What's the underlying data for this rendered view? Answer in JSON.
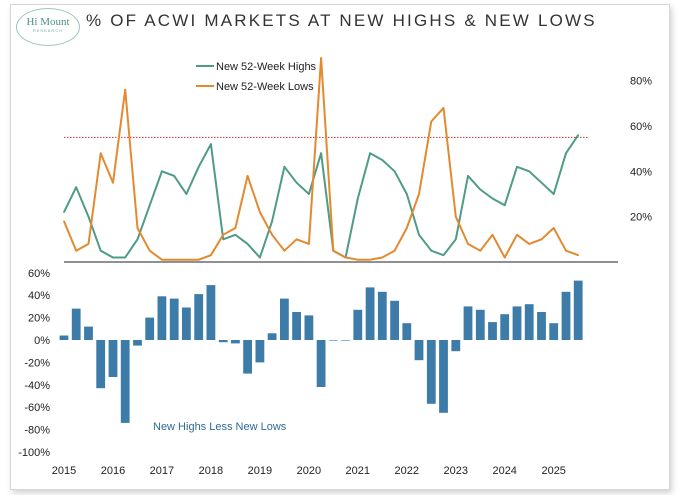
{
  "title": "% OF ACWI MARKETS AT NEW HIGHS & NEW LOWS",
  "logo": {
    "main": "Hi Mount",
    "sub": "RESEARCH"
  },
  "colors": {
    "highs": "#4e9b87",
    "lows": "#e3892f",
    "net": "#3d7ca8",
    "threshold": "#c0392b"
  },
  "chart_data": [
    {
      "type": "line",
      "title": "% OF ACWI MARKETS AT NEW HIGHS & NEW LOWS",
      "x": [
        2015.0,
        2015.25,
        2015.5,
        2015.75,
        2016.0,
        2016.25,
        2016.5,
        2016.75,
        2017.0,
        2017.25,
        2017.5,
        2017.75,
        2018.0,
        2018.25,
        2018.5,
        2018.75,
        2019.0,
        2019.25,
        2019.5,
        2019.75,
        2020.0,
        2020.25,
        2020.5,
        2020.75,
        2021.0,
        2021.25,
        2021.5,
        2021.75,
        2022.0,
        2022.25,
        2022.5,
        2022.75,
        2023.0,
        2023.25,
        2023.5,
        2023.75,
        2024.0,
        2024.25,
        2024.5,
        2024.75,
        2025.0,
        2025.25,
        2025.5
      ],
      "series": [
        {
          "name": "New 52-Week Highs",
          "values": [
            22,
            33,
            20,
            5,
            2,
            2,
            10,
            25,
            40,
            38,
            30,
            42,
            52,
            10,
            12,
            8,
            2,
            18,
            42,
            35,
            30,
            48,
            5,
            2,
            28,
            48,
            45,
            40,
            30,
            12,
            5,
            3,
            10,
            38,
            32,
            28,
            25,
            42,
            40,
            35,
            30,
            48,
            56
          ]
        },
        {
          "name": "New 52-Week Lows",
          "values": [
            18,
            5,
            8,
            48,
            35,
            76,
            15,
            5,
            1,
            1,
            1,
            1,
            3,
            12,
            15,
            38,
            22,
            12,
            5,
            10,
            8,
            90,
            5,
            2,
            1,
            1,
            2,
            5,
            15,
            30,
            62,
            68,
            20,
            8,
            5,
            12,
            2,
            12,
            8,
            10,
            15,
            5,
            3
          ]
        }
      ],
      "y_axis_ticks": [
        "80%",
        "60%",
        "40%",
        "20%"
      ],
      "ylim": [
        0,
        90
      ],
      "threshold": 55,
      "legend_position": "top-left"
    },
    {
      "type": "bar",
      "x": [
        2015.0,
        2015.25,
        2015.5,
        2015.75,
        2016.0,
        2016.25,
        2016.5,
        2016.75,
        2017.0,
        2017.25,
        2017.5,
        2017.75,
        2018.0,
        2018.25,
        2018.5,
        2018.75,
        2019.0,
        2019.25,
        2019.5,
        2019.75,
        2020.0,
        2020.25,
        2020.5,
        2020.75,
        2021.0,
        2021.25,
        2021.5,
        2021.75,
        2022.0,
        2022.25,
        2022.5,
        2022.75,
        2023.0,
        2023.25,
        2023.5,
        2023.75,
        2024.0,
        2024.25,
        2024.5,
        2024.75,
        2025.0,
        2025.25,
        2025.5
      ],
      "series": [
        {
          "name": "New Highs Less New Lows",
          "values": [
            4,
            28,
            12,
            -43,
            -33,
            -74,
            -5,
            20,
            39,
            37,
            29,
            41,
            49,
            -2,
            -3,
            -30,
            -20,
            6,
            37,
            25,
            22,
            -42,
            0,
            0,
            27,
            47,
            43,
            35,
            15,
            -18,
            -57,
            -65,
            -10,
            30,
            27,
            16,
            23,
            30,
            32,
            25,
            15,
            43,
            53
          ]
        }
      ],
      "y_axis_ticks": [
        "60%",
        "40%",
        "20%",
        "0%",
        "-20%",
        "-40%",
        "-60%",
        "-80%",
        "-100%"
      ],
      "ylim": [
        -100,
        60
      ],
      "x_ticks": [
        "2015",
        "2016",
        "2017",
        "2018",
        "2019",
        "2020",
        "2021",
        "2022",
        "2023",
        "2024",
        "2025"
      ],
      "annotation": "New Highs Less New Lows"
    }
  ]
}
